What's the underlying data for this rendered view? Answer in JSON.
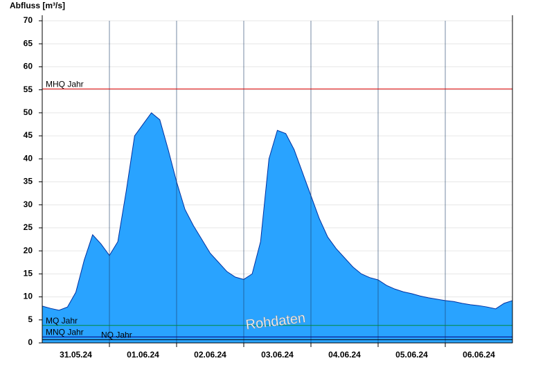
{
  "chart_data": {
    "type": "area",
    "y_label": "Abfluss [m³/s]",
    "watermark": "Rohdaten",
    "x": [
      0,
      0.125,
      0.25,
      0.375,
      0.5,
      0.625,
      0.75,
      0.875,
      1,
      1.125,
      1.25,
      1.375,
      1.5,
      1.625,
      1.75,
      1.875,
      2,
      2.125,
      2.25,
      2.375,
      2.5,
      2.625,
      2.75,
      2.875,
      3,
      3.125,
      3.25,
      3.375,
      3.5,
      3.625,
      3.75,
      3.875,
      4,
      4.125,
      4.25,
      4.375,
      4.5,
      4.625,
      4.75,
      4.875,
      5,
      5.125,
      5.25,
      5.375,
      5.5,
      5.625,
      5.75,
      5.875,
      6,
      6.125,
      6.25,
      6.375,
      6.5,
      6.625,
      6.75,
      6.875,
      7
    ],
    "series": [
      {
        "color": "#29a3ff",
        "values": [
          8,
          7.5,
          7.1,
          7.8,
          11,
          18,
          23.5,
          21.5,
          19,
          22,
          33,
          45,
          47.5,
          50,
          48.5,
          42,
          35,
          29,
          25.5,
          22.5,
          19.5,
          17.5,
          15.5,
          14.3,
          13.8,
          15,
          22,
          40,
          46.2,
          45.5,
          42,
          37,
          32,
          27,
          23,
          20.5,
          18.5,
          16.5,
          15,
          14.2,
          13.7,
          12.5,
          11.7,
          11.1,
          10.7,
          10.2,
          9.8,
          9.5,
          9.2,
          9,
          8.6,
          8.3,
          8.1,
          7.8,
          7.4,
          8.6,
          9.2
        ]
      }
    ],
    "reference_lines": [
      {
        "name": "MHQ Jahr",
        "value": 55.2,
        "color": "#e00000"
      },
      {
        "name": "MQ Jahr",
        "value": 3.8,
        "color": "#008a3a"
      },
      {
        "name": "MNQ Jahr",
        "value": 1.3,
        "color": "#000080"
      },
      {
        "name": "NQ Jahr",
        "value": 0.7,
        "color": "#000000"
      }
    ],
    "xlim": [
      0,
      7
    ],
    "xticks": [
      {
        "value": 0.5,
        "label": "31.05.24"
      },
      {
        "value": 1.5,
        "label": "01.06.24"
      },
      {
        "value": 2.5,
        "label": "02.06.24"
      },
      {
        "value": 3.5,
        "label": "03.06.24"
      },
      {
        "value": 4.5,
        "label": "04.06.24"
      },
      {
        "value": 5.5,
        "label": "05.06.24"
      },
      {
        "value": 6.5,
        "label": "06.06.24"
      }
    ],
    "xminorticks": [
      1,
      2,
      3,
      4,
      5,
      6
    ],
    "ylim": [
      0,
      70
    ],
    "yticks": [
      0,
      5,
      10,
      15,
      20,
      25,
      30,
      35,
      40,
      45,
      50,
      55,
      60,
      65,
      70
    ],
    "grid": true
  }
}
